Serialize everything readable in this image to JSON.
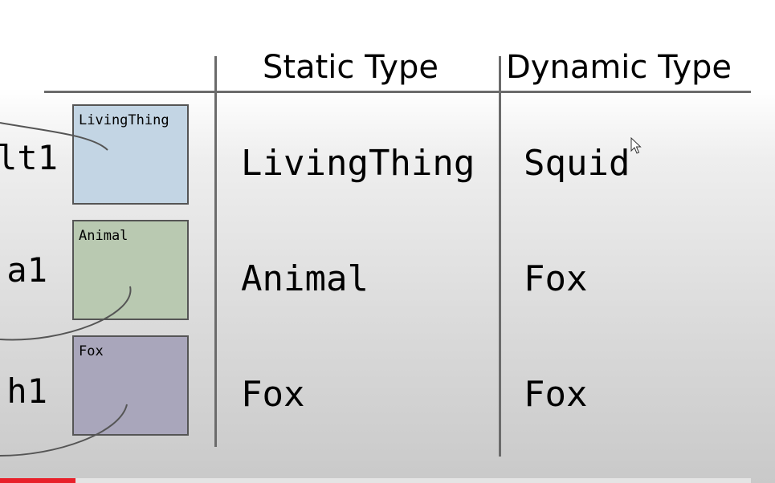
{
  "table": {
    "headers": {
      "static_type": "Static Type",
      "dynamic_type": "Dynamic Type"
    },
    "rows": [
      {
        "variable": "lt1",
        "box_label": "LivingThing",
        "static_type": "LivingThing",
        "dynamic_type": "Squid",
        "box_color": "#c3d5e4"
      },
      {
        "variable": "a1",
        "box_label": "Animal",
        "static_type": "Animal",
        "dynamic_type": "Fox",
        "box_color": "#b9c9b1"
      },
      {
        "variable": "h1",
        "box_label": "Fox",
        "static_type": "Fox",
        "dynamic_type": "Fox",
        "box_color": "#a9a6bb"
      }
    ]
  },
  "playback": {
    "progress_fraction": 0.1
  },
  "colors": {
    "rule": "#6b6b6b",
    "progress": "#e8202a"
  }
}
